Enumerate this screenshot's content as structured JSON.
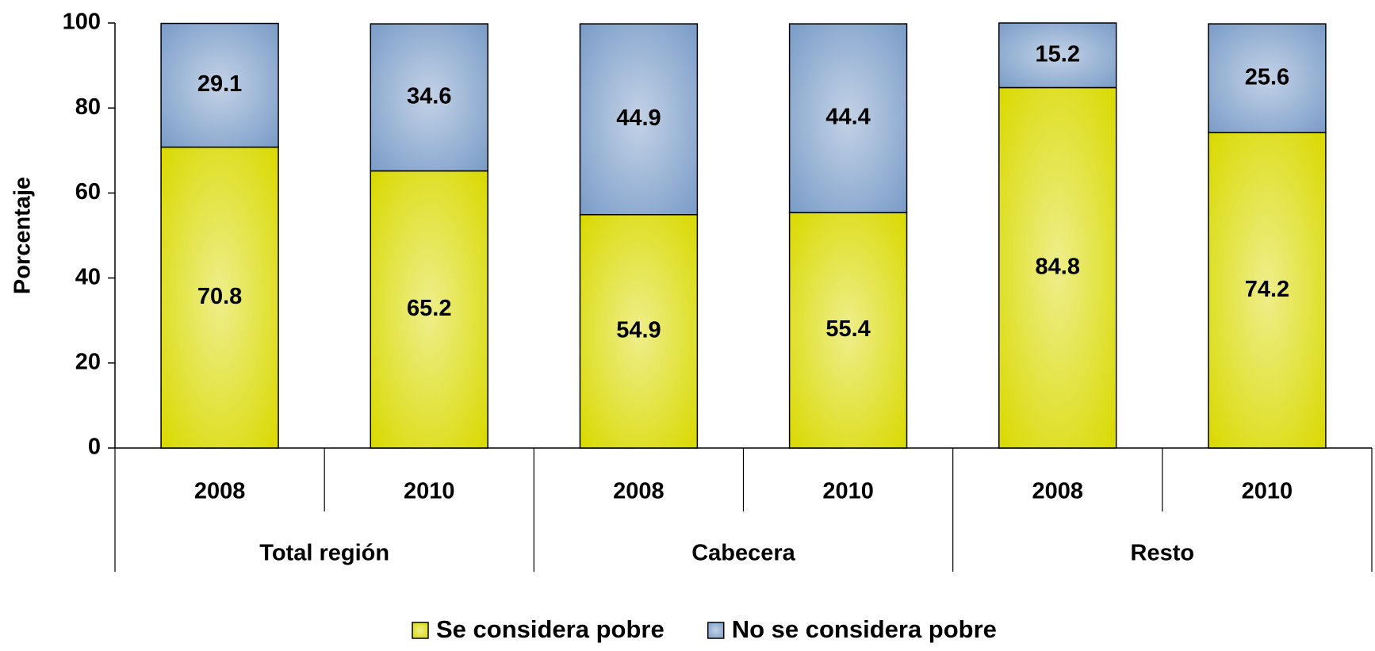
{
  "chart_data": {
    "type": "stacked_bar",
    "y_label": "Porcentaje",
    "categories": [
      "2008",
      "2010",
      "2008",
      "2010",
      "2008",
      "2010"
    ],
    "groups": [
      "Total región",
      "Cabecera",
      "Resto"
    ],
    "series": [
      {
        "name": "Se considera pobre",
        "color": "#d9d900",
        "values": [
          70.8,
          65.2,
          54.9,
          55.4,
          84.8,
          74.2
        ]
      },
      {
        "name": "No se considera pobre",
        "color": "#7a9cc8",
        "values": [
          29.1,
          34.6,
          44.9,
          44.4,
          15.2,
          25.6
        ]
      }
    ],
    "ylim": [
      0,
      100
    ],
    "yticks": [
      0,
      20,
      40,
      60,
      80,
      100
    ],
    "legend": "bottom"
  }
}
